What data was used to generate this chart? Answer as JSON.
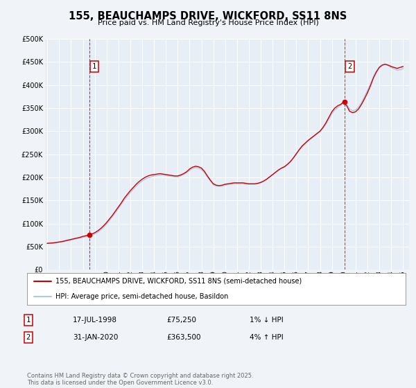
{
  "title": "155, BEAUCHAMPS DRIVE, WICKFORD, SS11 8NS",
  "subtitle": "Price paid vs. HM Land Registry's House Price Index (HPI)",
  "bg_color": "#f0f4f8",
  "plot_bg_color": "#e8eef6",
  "grid_color": "#ffffff",
  "red_color": "#cc0000",
  "blue_color": "#aac8e8",
  "marker1_date_num": 1998.54,
  "marker1_value": 75250,
  "marker2_date_num": 2020.08,
  "marker2_value": 363500,
  "vline1_x": 1998.54,
  "vline2_x": 2020.08,
  "xmin": 1994.8,
  "xmax": 2025.5,
  "ymin": 0,
  "ymax": 500000,
  "yticks": [
    0,
    50000,
    100000,
    150000,
    200000,
    250000,
    300000,
    350000,
    400000,
    450000,
    500000
  ],
  "ytick_labels": [
    "£0",
    "£50K",
    "£100K",
    "£150K",
    "£200K",
    "£250K",
    "£300K",
    "£350K",
    "£400K",
    "£450K",
    "£500K"
  ],
  "xticks": [
    1995,
    1996,
    1997,
    1998,
    1999,
    2000,
    2001,
    2002,
    2003,
    2004,
    2005,
    2006,
    2007,
    2008,
    2009,
    2010,
    2011,
    2012,
    2013,
    2014,
    2015,
    2016,
    2017,
    2018,
    2019,
    2020,
    2021,
    2022,
    2023,
    2024,
    2025
  ],
  "legend_label_red": "155, BEAUCHAMPS DRIVE, WICKFORD, SS11 8NS (semi-detached house)",
  "legend_label_blue": "HPI: Average price, semi-detached house, Basildon",
  "table_row1": [
    "1",
    "17-JUL-1998",
    "£75,250",
    "1% ↓ HPI"
  ],
  "table_row2": [
    "2",
    "31-JAN-2020",
    "£363,500",
    "4% ↑ HPI"
  ],
  "footer": "Contains HM Land Registry data © Crown copyright and database right 2025.\nThis data is licensed under the Open Government Licence v3.0.",
  "red_x": [
    1995.0,
    1995.25,
    1995.5,
    1995.75,
    1996.0,
    1996.25,
    1996.5,
    1996.75,
    1997.0,
    1997.25,
    1997.5,
    1997.75,
    1998.0,
    1998.25,
    1998.5,
    1998.75,
    1999.0,
    1999.25,
    1999.5,
    1999.75,
    2000.0,
    2000.25,
    2000.5,
    2000.75,
    2001.0,
    2001.25,
    2001.5,
    2001.75,
    2002.0,
    2002.25,
    2002.5,
    2002.75,
    2003.0,
    2003.25,
    2003.5,
    2003.75,
    2004.0,
    2004.25,
    2004.5,
    2004.75,
    2005.0,
    2005.25,
    2005.5,
    2005.75,
    2006.0,
    2006.25,
    2006.5,
    2006.75,
    2007.0,
    2007.25,
    2007.5,
    2007.75,
    2008.0,
    2008.25,
    2008.5,
    2008.75,
    2009.0,
    2009.25,
    2009.5,
    2009.75,
    2010.0,
    2010.25,
    2010.5,
    2010.75,
    2011.0,
    2011.25,
    2011.5,
    2011.75,
    2012.0,
    2012.25,
    2012.5,
    2012.75,
    2013.0,
    2013.25,
    2013.5,
    2013.75,
    2014.0,
    2014.25,
    2014.5,
    2014.75,
    2015.0,
    2015.25,
    2015.5,
    2015.75,
    2016.0,
    2016.25,
    2016.5,
    2016.75,
    2017.0,
    2017.25,
    2017.5,
    2017.75,
    2018.0,
    2018.25,
    2018.5,
    2018.75,
    2019.0,
    2019.25,
    2019.5,
    2019.75,
    2020.0,
    2020.25,
    2020.5,
    2020.75,
    2021.0,
    2021.25,
    2021.5,
    2021.75,
    2022.0,
    2022.25,
    2022.5,
    2022.75,
    2023.0,
    2023.25,
    2023.5,
    2023.75,
    2024.0,
    2024.25,
    2024.5,
    2024.75,
    2025.0
  ],
  "red_y": [
    57000,
    57500,
    58000,
    59000,
    60000,
    61000,
    62500,
    64000,
    65500,
    67000,
    68500,
    70000,
    72000,
    73500,
    75250,
    77000,
    80000,
    84000,
    89000,
    95000,
    102000,
    110000,
    118000,
    127000,
    136000,
    145000,
    155000,
    163000,
    171000,
    178000,
    185000,
    191000,
    196000,
    200000,
    203000,
    205000,
    206000,
    207000,
    208000,
    207000,
    206000,
    205000,
    204000,
    203000,
    203000,
    205000,
    208000,
    212000,
    218000,
    222000,
    224000,
    223000,
    220000,
    213000,
    203000,
    194000,
    186000,
    183000,
    182000,
    183000,
    185000,
    186000,
    187000,
    188000,
    188000,
    188000,
    188000,
    187000,
    186000,
    186000,
    186000,
    187000,
    189000,
    192000,
    196000,
    201000,
    206000,
    211000,
    216000,
    220000,
    223000,
    228000,
    234000,
    242000,
    251000,
    260000,
    268000,
    274000,
    280000,
    285000,
    290000,
    295000,
    300000,
    308000,
    318000,
    330000,
    342000,
    350000,
    355000,
    358000,
    363500,
    355000,
    343000,
    340000,
    342000,
    348000,
    358000,
    370000,
    383000,
    398000,
    415000,
    428000,
    438000,
    443000,
    445000,
    443000,
    440000,
    438000,
    436000,
    438000,
    440000
  ],
  "blue_x": [
    1995.0,
    1995.25,
    1995.5,
    1995.75,
    1996.0,
    1996.25,
    1996.5,
    1996.75,
    1997.0,
    1997.25,
    1997.5,
    1997.75,
    1998.0,
    1998.25,
    1998.5,
    1998.75,
    1999.0,
    1999.25,
    1999.5,
    1999.75,
    2000.0,
    2000.25,
    2000.5,
    2000.75,
    2001.0,
    2001.25,
    2001.5,
    2001.75,
    2002.0,
    2002.25,
    2002.5,
    2002.75,
    2003.0,
    2003.25,
    2003.5,
    2003.75,
    2004.0,
    2004.25,
    2004.5,
    2004.75,
    2005.0,
    2005.25,
    2005.5,
    2005.75,
    2006.0,
    2006.25,
    2006.5,
    2006.75,
    2007.0,
    2007.25,
    2007.5,
    2007.75,
    2008.0,
    2008.25,
    2008.5,
    2008.75,
    2009.0,
    2009.25,
    2009.5,
    2009.75,
    2010.0,
    2010.25,
    2010.5,
    2010.75,
    2011.0,
    2011.25,
    2011.5,
    2011.75,
    2012.0,
    2012.25,
    2012.5,
    2012.75,
    2013.0,
    2013.25,
    2013.5,
    2013.75,
    2014.0,
    2014.25,
    2014.5,
    2014.75,
    2015.0,
    2015.25,
    2015.5,
    2015.75,
    2016.0,
    2016.25,
    2016.5,
    2016.75,
    2017.0,
    2017.25,
    2017.5,
    2017.75,
    2018.0,
    2018.25,
    2018.5,
    2018.75,
    2019.0,
    2019.25,
    2019.5,
    2019.75,
    2020.0,
    2020.25,
    2020.5,
    2020.75,
    2021.0,
    2021.25,
    2021.5,
    2021.75,
    2022.0,
    2022.25,
    2022.5,
    2022.75,
    2023.0,
    2023.25,
    2023.5,
    2023.75,
    2024.0,
    2024.25,
    2024.5,
    2024.75,
    2025.0
  ],
  "blue_y": [
    57000,
    57200,
    57500,
    58000,
    59000,
    60000,
    61200,
    62500,
    64000,
    65500,
    67000,
    68500,
    70000,
    71500,
    73000,
    74500,
    77000,
    81000,
    86000,
    92000,
    99000,
    107000,
    115000,
    124000,
    133000,
    142000,
    151000,
    159000,
    167000,
    174000,
    181000,
    187000,
    192000,
    196000,
    199000,
    201000,
    203000,
    204000,
    205000,
    205000,
    204000,
    203000,
    202000,
    201000,
    201000,
    203000,
    206000,
    210000,
    215000,
    219000,
    221000,
    220000,
    217000,
    210000,
    201000,
    192000,
    184000,
    181000,
    180000,
    181000,
    183000,
    184000,
    185000,
    186000,
    186000,
    186000,
    186000,
    185000,
    185000,
    185000,
    185000,
    186000,
    188000,
    191000,
    195000,
    200000,
    205000,
    210000,
    215000,
    219000,
    222000,
    227000,
    233000,
    241000,
    250000,
    259000,
    267000,
    273000,
    279000,
    284000,
    289000,
    294000,
    299000,
    306000,
    315000,
    326000,
    338000,
    346000,
    351000,
    356000,
    363500,
    358000,
    348000,
    344000,
    346000,
    352000,
    362000,
    375000,
    388000,
    402000,
    418000,
    430000,
    439000,
    444000,
    444000,
    442000,
    438000,
    435000,
    432000,
    433000,
    435000
  ]
}
